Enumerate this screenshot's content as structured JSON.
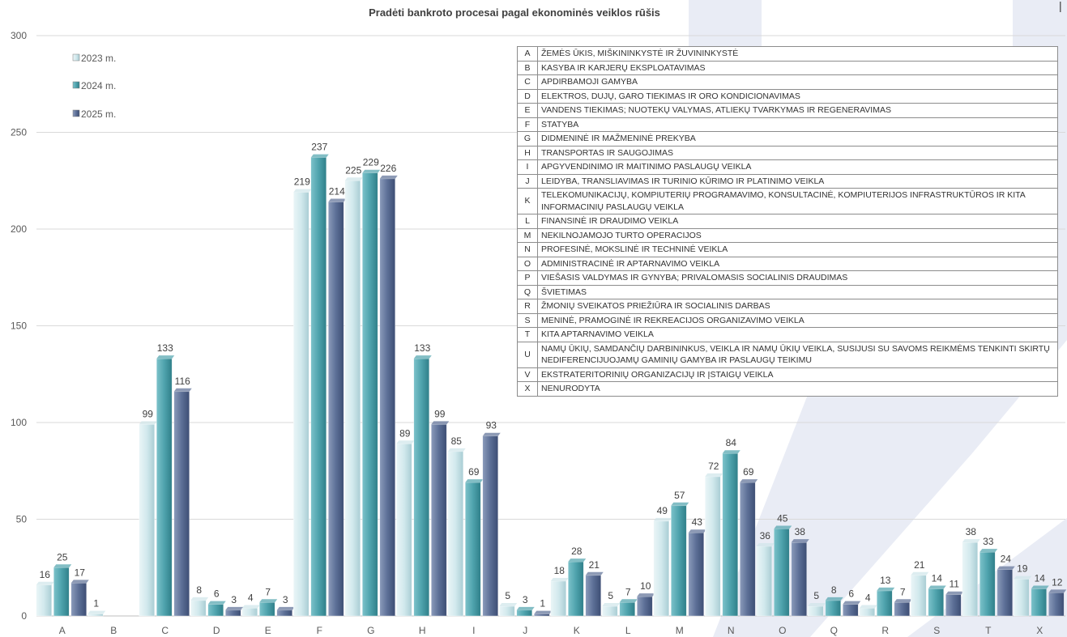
{
  "chart_data": {
    "type": "bar",
    "title": "Pradėti bankroto procesai pagal ekonominės veiklos rūšis",
    "categories": [
      "A",
      "B",
      "C",
      "D",
      "E",
      "F",
      "G",
      "H",
      "I",
      "J",
      "K",
      "L",
      "M",
      "N",
      "O",
      "Q",
      "R",
      "S",
      "T",
      "X"
    ],
    "series": [
      {
        "name": "2023 m.",
        "color": "#cfe6ea",
        "values": [
          16,
          1,
          99,
          8,
          4,
          219,
          225,
          89,
          85,
          5,
          18,
          5,
          49,
          72,
          36,
          5,
          4,
          21,
          38,
          19
        ]
      },
      {
        "name": "2024 m.",
        "color": "#4fa3ad",
        "values": [
          25,
          null,
          133,
          6,
          7,
          237,
          229,
          133,
          69,
          3,
          28,
          7,
          57,
          84,
          45,
          8,
          13,
          14,
          33,
          14
        ]
      },
      {
        "name": "2025 m.",
        "color": "#5c6f96",
        "values": [
          17,
          null,
          116,
          3,
          3,
          214,
          226,
          99,
          93,
          1,
          21,
          10,
          43,
          69,
          38,
          6,
          7,
          11,
          24,
          12
        ]
      }
    ],
    "data_labels": [
      [
        "16",
        "1",
        "99",
        "8",
        "4",
        "219",
        "225",
        "89",
        "85",
        "5",
        "18",
        "5",
        "49",
        "72",
        "36",
        "5",
        "4",
        "21",
        "38",
        "19"
      ],
      [
        "25",
        "",
        "133",
        "6",
        "7",
        "237",
        "229",
        "133",
        "69",
        "3",
        "28",
        "7",
        "57",
        "84",
        "45",
        "8",
        "13",
        "14",
        "33",
        "14"
      ],
      [
        "17",
        "",
        "116",
        "3",
        "3",
        "214",
        "226",
        "99",
        "93",
        "1",
        "21",
        "10",
        "43",
        "69",
        "38",
        "6",
        "7",
        "11",
        "24",
        "12"
      ]
    ],
    "ylim": [
      0,
      300
    ],
    "yticks": [
      "0",
      "50",
      "100",
      "150",
      "200",
      "250",
      "300"
    ],
    "ytick_values": [
      0,
      50,
      100,
      150,
      200,
      250,
      300
    ],
    "grid": true,
    "legend_position": "top-left",
    "xlabel": "",
    "ylabel": ""
  },
  "code_table": [
    {
      "code": "A",
      "text": "ŽEMĖS ŪKIS, MIŠKININKYSTĖ IR ŽUVININKYSTĖ"
    },
    {
      "code": "B",
      "text": "KASYBA IR KARJERŲ EKSPLOATAVIMAS"
    },
    {
      "code": "C",
      "text": "APDIRBAMOJI GAMYBA"
    },
    {
      "code": "D",
      "text": "ELEKTROS, DUJŲ, GARO TIEKIMAS IR ORO KONDICIONAVIMAS"
    },
    {
      "code": "E",
      "text": "VANDENS TIEKIMAS; NUOTEKŲ VALYMAS, ATLIEKŲ TVARKYMAS IR REGENERAVIMAS"
    },
    {
      "code": "F",
      "text": "STATYBA"
    },
    {
      "code": "G",
      "text": "DIDMENINĖ IR MAŽMENINĖ PREKYBA"
    },
    {
      "code": "H",
      "text": "TRANSPORTAS IR SAUGOJIMAS"
    },
    {
      "code": "I",
      "text": "APGYVENDINIMO IR MAITINIMO PASLAUGŲ VEIKLA"
    },
    {
      "code": "J",
      "text": "LEIDYBA, TRANSLIAVIMAS IR TURINIO KŪRIMO IR PLATINIMO VEIKLA"
    },
    {
      "code": "K",
      "text": "TELEKOMUNIKACIJŲ, KOMPIUTERIŲ PROGRAMAVIMO, KONSULTACINĖ, KOMPIUTERIJOS INFRASTRUKTŪROS IR KITA INFORMACINIŲ PASLAUGŲ VEIKLA"
    },
    {
      "code": "L",
      "text": "FINANSINĖ IR DRAUDIMO VEIKLA"
    },
    {
      "code": "M",
      "text": "NEKILNOJAMOJO TURTO OPERACIJOS"
    },
    {
      "code": "N",
      "text": "PROFESINĖ, MOKSLINĖ IR TECHNINĖ VEIKLA"
    },
    {
      "code": "O",
      "text": "ADMINISTRACINĖ IR APTARNAVIMO VEIKLA"
    },
    {
      "code": "P",
      "text": "VIEŠASIS VALDYMAS IR GYNYBA; PRIVALOMASIS SOCIALINIS DRAUDIMAS"
    },
    {
      "code": "Q",
      "text": "ŠVIETIMAS"
    },
    {
      "code": "R",
      "text": "ŽMONIŲ SVEIKATOS PRIEŽIŪRA IR SOCIALINIS DARBAS"
    },
    {
      "code": "S",
      "text": "MENINĖ, PRAMOGINĖ IR REKREACIJOS ORGANIZAVIMO VEIKLA"
    },
    {
      "code": "T",
      "text": "KITA APTARNAVIMO VEIKLA"
    },
    {
      "code": "U",
      "text": "NAMŲ ŪKIŲ, SAMDANČIŲ DARBININKUS, VEIKLA IR NAMŲ ŪKIŲ VEIKLA, SUSIJUSI SU SAVOMS REIKMĖMS TENKINTI SKIRTŲ NEDIFERENCIJUOJAMŲ GAMINIŲ GAMYBA IR PASLAUGŲ TEIKIMU"
    },
    {
      "code": "V",
      "text": "EKSTRATERITORINIŲ ORGANIZACIJŲ IR ĮSTAIGŲ VEIKLA"
    },
    {
      "code": "X",
      "text": "NENURODYTA"
    }
  ],
  "colors": {
    "watermark": "#e8ebf4",
    "gridline": "#d9d9d9",
    "text": "#595959",
    "title": "#404040"
  }
}
